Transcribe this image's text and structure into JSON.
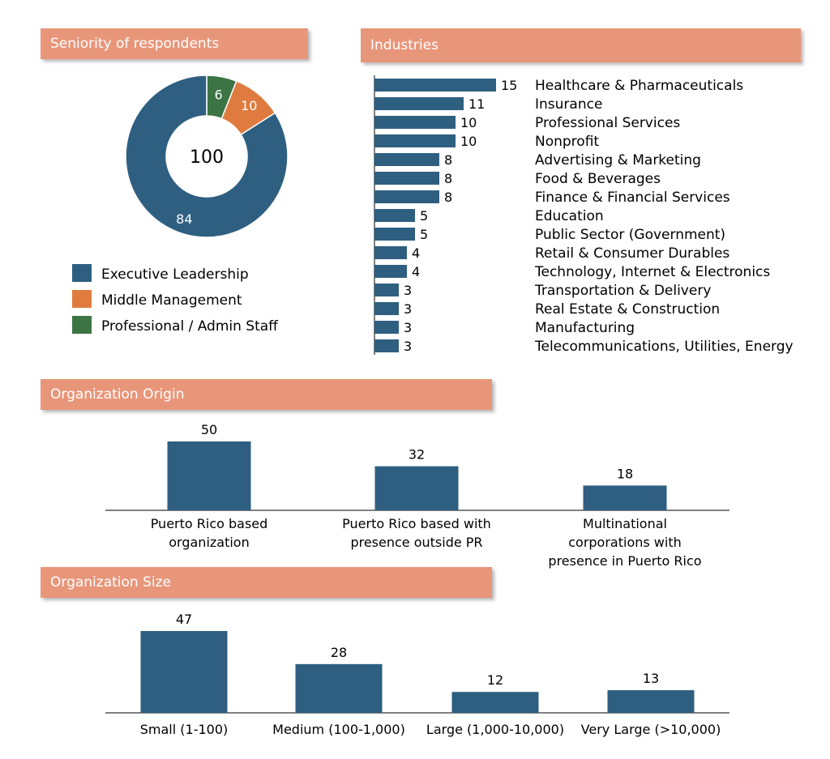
{
  "headers": {
    "seniority": "Seniority of respondents",
    "industries": "Industries",
    "origin": "Organization Origin",
    "size": "Organization Size"
  },
  "colors": {
    "header": "#e8967a",
    "bar": "#2e5f80",
    "executive": "#2e5f80",
    "middle": "#e07b3f",
    "admin": "#3c7444"
  },
  "chart_data": [
    {
      "type": "pie",
      "title": "Seniority of respondents",
      "center_label": "100",
      "categories": [
        "Executive Leadership",
        "Middle Management",
        "Professional / Admin Staff"
      ],
      "values": [
        84,
        10,
        6
      ]
    },
    {
      "type": "bar",
      "orientation": "horizontal",
      "title": "Industries",
      "categories": [
        "Healthcare & Pharmaceuticals",
        "Insurance",
        "Professional Services",
        "Nonprofit",
        "Advertising & Marketing",
        "Food & Beverages",
        "Finance & Financial Services",
        "Education",
        "Public Sector (Government)",
        "Retail & Consumer Durables",
        "Technology, Internet & Electronics",
        "Transportation & Delivery",
        "Real Estate & Construction",
        "Manufacturing",
        "Telecommunications, Utilities, Energy"
      ],
      "values": [
        15,
        11,
        10,
        10,
        8,
        8,
        8,
        5,
        5,
        4,
        4,
        3,
        3,
        3,
        3
      ]
    },
    {
      "type": "bar",
      "title": "Organization Origin",
      "categories": [
        [
          "Puerto Rico based",
          "organization"
        ],
        [
          "Puerto Rico based with",
          "presence outside PR"
        ],
        [
          "Multinational",
          "corporations with",
          "presence in Puerto Rico"
        ]
      ],
      "values": [
        50,
        32,
        18
      ]
    },
    {
      "type": "bar",
      "title": "Organization Size",
      "categories": [
        "Small (1-100)",
        "Medium (100-1,000)",
        "Large (1,000-10,000)",
        "Very Large (>10,000)"
      ],
      "values": [
        47,
        28,
        12,
        13
      ]
    }
  ]
}
